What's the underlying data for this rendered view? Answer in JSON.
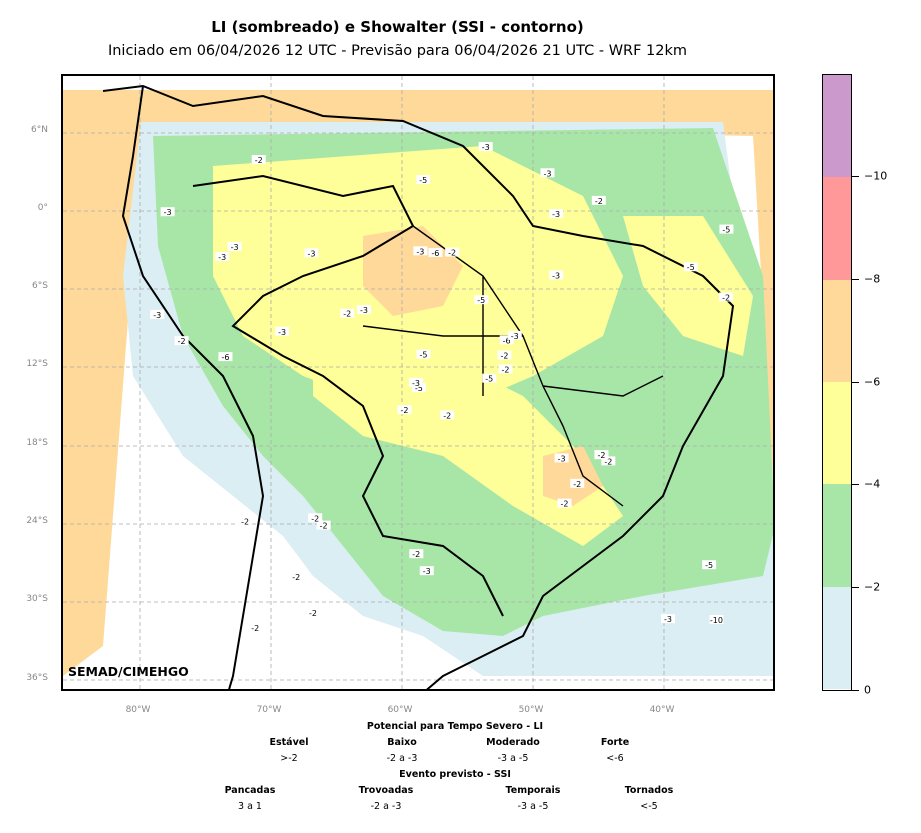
{
  "title": "LI (sombreado) e Showalter (SSI - contorno)",
  "subtitle": "Iniciado em 06/04/2026 12 UTC - Previsão para 06/04/2026 21 UTC - WRF 12km",
  "credit": "SEMAD/CIMEHGO",
  "lat_labels": [
    "6°N",
    "0°",
    "6°S",
    "12°S",
    "18°S",
    "24°S",
    "30°S",
    "36°S"
  ],
  "lon_labels": [
    "80°W",
    "70°W",
    "60°W",
    "50°W",
    "40°W"
  ],
  "colorbar": {
    "labels": [
      "0",
      "−2",
      "−4",
      "−6",
      "−8",
      "−10"
    ],
    "colors": [
      "#dbeef4",
      "#a8e6a8",
      "#ffff99",
      "#ffd999",
      "#ff9999",
      "#cc99cc"
    ]
  },
  "legend": {
    "li_title": "Potencial para Tempo Severo - LI",
    "li_categories": [
      {
        "name": "Estável",
        "range": ">-2"
      },
      {
        "name": "Baixo",
        "range": "-2 a -3"
      },
      {
        "name": "Moderado",
        "range": "-3 a -5"
      },
      {
        "name": "Forte",
        "range": "<-6"
      }
    ],
    "ssi_title": "Evento previsto - SSI",
    "ssi_categories": [
      {
        "name": "Pancadas",
        "range": "3 a 1"
      },
      {
        "name": "Trovoadas",
        "range": "-2 a -3"
      },
      {
        "name": "Temporais",
        "range": "-3 a -5"
      },
      {
        "name": "Tornados",
        "range": "<-5"
      }
    ]
  },
  "contour_labels": [
    "-2",
    "-3",
    "-5",
    "-6",
    "-2",
    "-3",
    "-2",
    "-3",
    "-5",
    "-2",
    "-10",
    "-6",
    "-5",
    "-2",
    "-3",
    "-2",
    "-3",
    "-5",
    "-2",
    "-3",
    "-2",
    "-6",
    "-3",
    "-2",
    "-3",
    "-5",
    "-2",
    "-3",
    "-2",
    "-3",
    "-2",
    "-5",
    "-3",
    "-2",
    "-2",
    "-3",
    "-5",
    "-2",
    "-3",
    "-2",
    "-3",
    "-2",
    "-2",
    "-3",
    "-2",
    "-3",
    "-2",
    "-5",
    "-3",
    "-2"
  ]
}
